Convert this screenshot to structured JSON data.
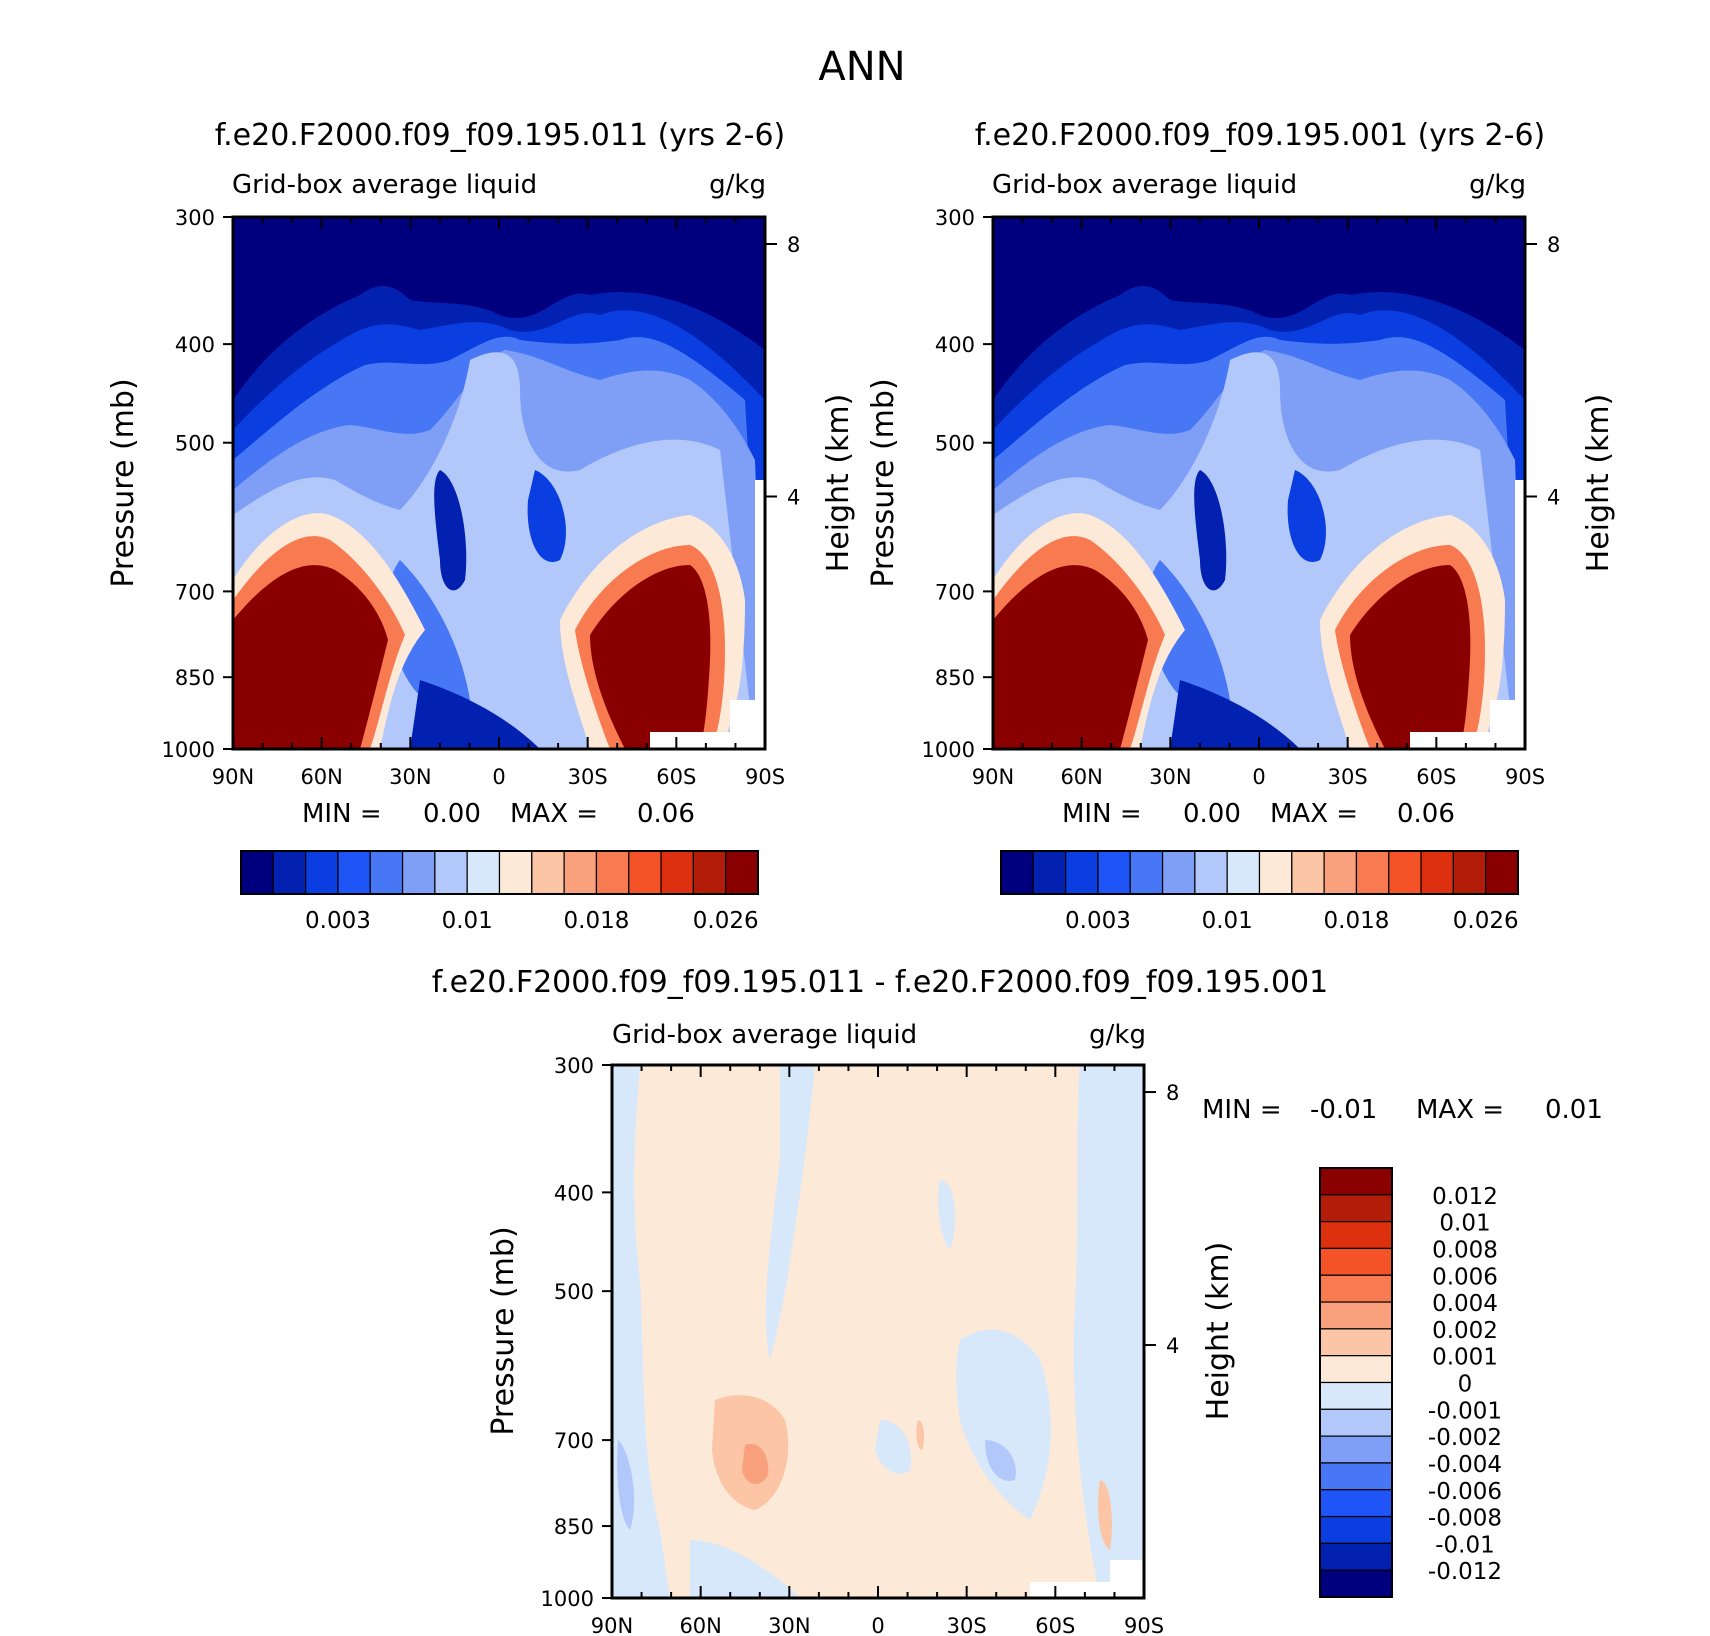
{
  "figure_title": "ANN",
  "chart_data": [
    {
      "type": "heatmap",
      "title": "f.e20.F2000.f09_f09.195.011 (yrs 2-6)",
      "subtitle_left": "Grid-box average liquid",
      "subtitle_right": "g/kg",
      "ylabel": "Pressure (mb)",
      "ylabel_right": "Height (km)",
      "y_ticks": [
        300,
        400,
        500,
        700,
        850,
        1000
      ],
      "y_right_ticks": [
        8,
        4
      ],
      "x_ticks": [
        "90N",
        "60N",
        "30N",
        "0",
        "30S",
        "60S",
        "90S"
      ],
      "ylim": [
        1000,
        300
      ],
      "xlim": [
        90,
        -90
      ],
      "min_label": "MIN =",
      "min_value": "0.00",
      "max_label": "MAX =",
      "max_value": "0.06",
      "colorbar": {
        "orientation": "horizontal",
        "labels": [
          "0.003",
          "0.01",
          "0.018",
          "0.026"
        ],
        "colors": [
          "#00007e",
          "#0221b1",
          "#0a3ee0",
          "#1f55f6",
          "#4777f5",
          "#7f9ff6",
          "#b3c8fa",
          "#d8e8fb",
          "#fde9d8",
          "#fbc5a6",
          "#f9a07c",
          "#f87a50",
          "#f35327",
          "#dd300e",
          "#b41c0a",
          "#8a0000"
        ]
      }
    },
    {
      "type": "heatmap",
      "title": "f.e20.F2000.f09_f09.195.001 (yrs 2-6)",
      "subtitle_left": "Grid-box average liquid",
      "subtitle_right": "g/kg",
      "ylabel": "Pressure (mb)",
      "ylabel_right": "Height (km)",
      "y_ticks": [
        300,
        400,
        500,
        700,
        850,
        1000
      ],
      "y_right_ticks": [
        8,
        4
      ],
      "x_ticks": [
        "90N",
        "60N",
        "30N",
        "0",
        "30S",
        "60S",
        "90S"
      ],
      "ylim": [
        1000,
        300
      ],
      "xlim": [
        90,
        -90
      ],
      "min_label": "MIN =",
      "min_value": "0.00",
      "max_label": "MAX =",
      "max_value": "0.06",
      "colorbar": {
        "orientation": "horizontal",
        "labels": [
          "0.003",
          "0.01",
          "0.018",
          "0.026"
        ],
        "colors": [
          "#00007e",
          "#0221b1",
          "#0a3ee0",
          "#1f55f6",
          "#4777f5",
          "#7f9ff6",
          "#b3c8fa",
          "#d8e8fb",
          "#fde9d8",
          "#fbc5a6",
          "#f9a07c",
          "#f87a50",
          "#f35327",
          "#dd300e",
          "#b41c0a",
          "#8a0000"
        ]
      }
    },
    {
      "type": "heatmap",
      "title": "f.e20.F2000.f09_f09.195.011 - f.e20.F2000.f09_f09.195.001",
      "subtitle_left": "Grid-box average liquid",
      "subtitle_right": "g/kg",
      "ylabel": "Pressure (mb)",
      "ylabel_right": "Height (km)",
      "y_ticks": [
        300,
        400,
        500,
        700,
        850,
        1000
      ],
      "y_right_ticks": [
        8,
        4
      ],
      "x_ticks": [
        "90N",
        "60N",
        "30N",
        "0",
        "30S",
        "60S",
        "90S"
      ],
      "ylim": [
        1000,
        300
      ],
      "xlim": [
        90,
        -90
      ],
      "min_label": "MIN =",
      "min_value": "-0.01",
      "max_label": "MAX =",
      "max_value": "0.01",
      "colorbar": {
        "orientation": "vertical",
        "labels": [
          "0.012",
          "0.01",
          "0.008",
          "0.006",
          "0.004",
          "0.002",
          "0.001",
          "0",
          "-0.001",
          "-0.002",
          "-0.004",
          "-0.006",
          "-0.008",
          "-0.01",
          "-0.012"
        ],
        "colors": [
          "#8a0000",
          "#b41c0a",
          "#dd300e",
          "#f35327",
          "#f87a50",
          "#f9a07c",
          "#fbc5a6",
          "#fde9d8",
          "#d8e8fb",
          "#b3c8fa",
          "#7f9ff6",
          "#4777f5",
          "#1f55f6",
          "#0a3ee0",
          "#0221b1",
          "#00007e"
        ]
      }
    }
  ]
}
